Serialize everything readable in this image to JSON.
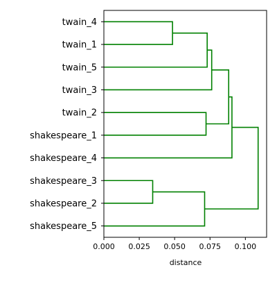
{
  "chart_data": {
    "type": "dendrogram",
    "orientation": "right",
    "link_color": "#008000",
    "leaves": [
      "twain_4",
      "twain_1",
      "twain_5",
      "twain_3",
      "twain_2",
      "shakespeare_1",
      "shakespeare_4",
      "shakespeare_3",
      "shakespeare_2",
      "shakespeare_5"
    ],
    "merges": [
      {
        "a": "twain_4",
        "b": "twain_1",
        "height": 0.0485
      },
      {
        "a": "twain_2",
        "b": "shakespeare_1",
        "height": 0.0722
      },
      {
        "a": "shakespeare_3",
        "b": "shakespeare_2",
        "height": 0.0345
      },
      {
        "a": "c0",
        "b": "twain_5",
        "height": 0.073
      },
      {
        "a": "c2",
        "b": "shakespeare_5",
        "height": 0.0712
      },
      {
        "a": "c3",
        "b": "twain_3",
        "height": 0.0762
      },
      {
        "a": "c5",
        "b": "c1",
        "height": 0.0882
      },
      {
        "a": "c6",
        "b": "shakespeare_4",
        "height": 0.0905
      },
      {
        "a": "c7",
        "b": "c4",
        "height": 0.109
      }
    ],
    "xlabel": "distance",
    "xlim": [
      0,
      0.115
    ],
    "xticks": [
      0.0,
      0.025,
      0.05,
      0.075,
      0.1
    ],
    "xtick_labels": [
      "0.000",
      "0.025",
      "0.050",
      "0.075",
      "0.100"
    ]
  }
}
